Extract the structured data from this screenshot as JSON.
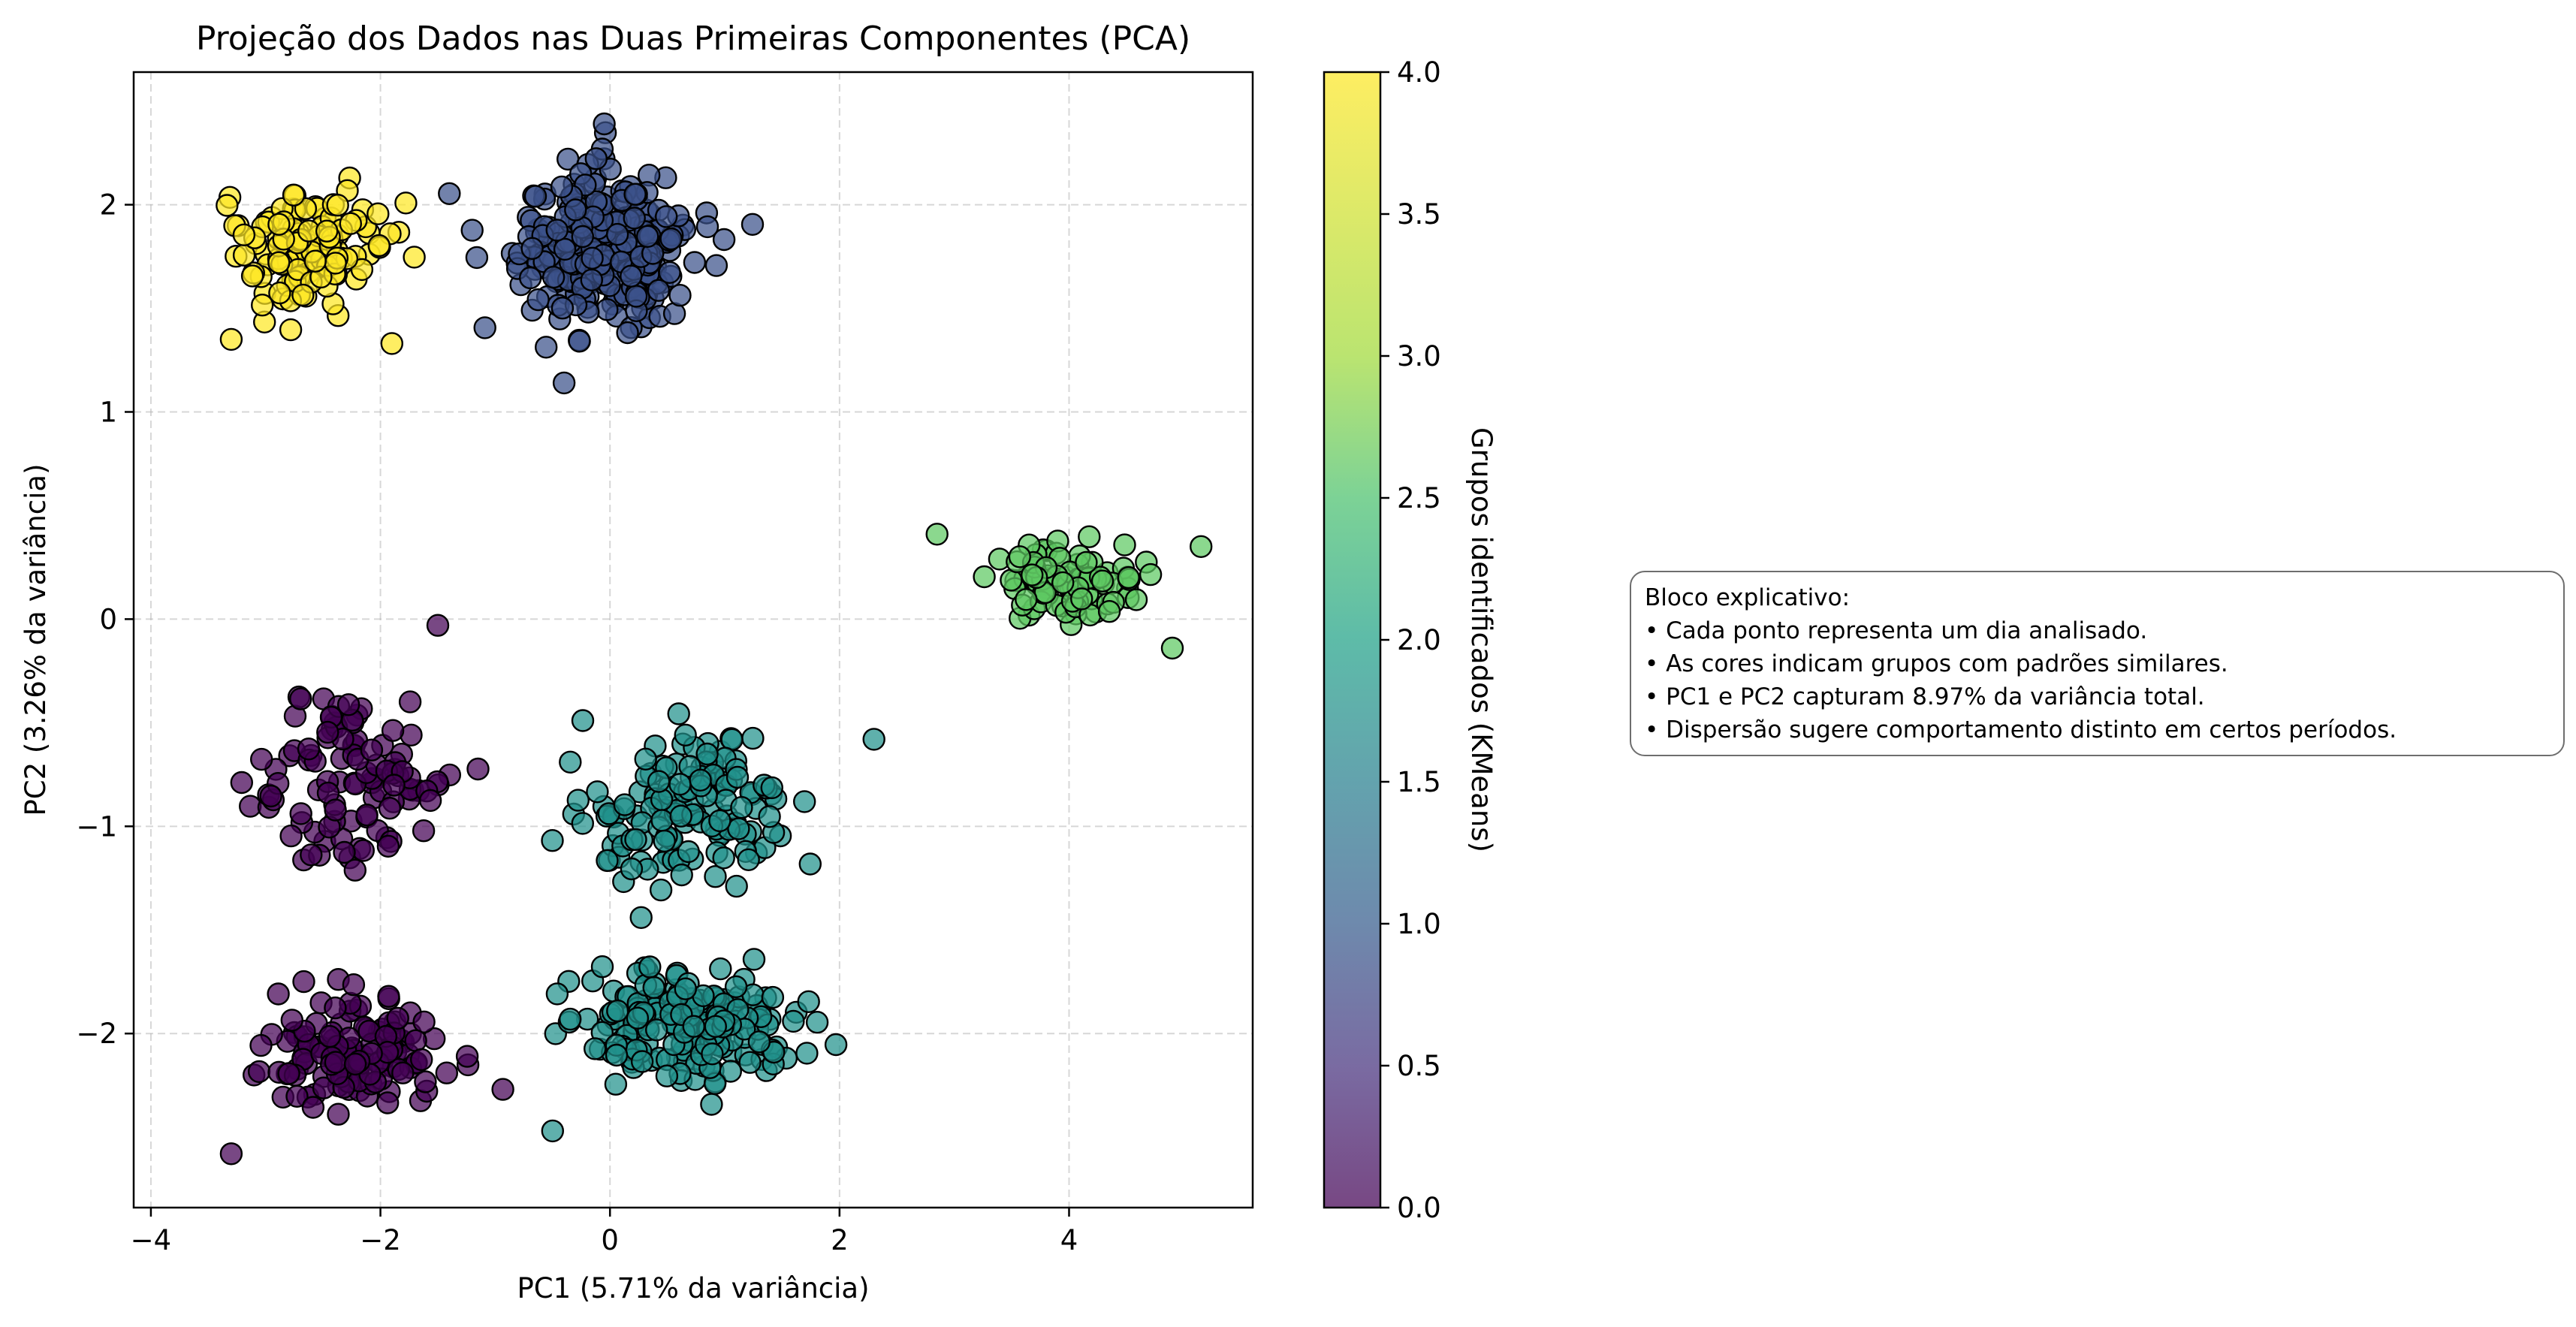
{
  "chart_data": {
    "type": "scatter",
    "title": "Projeção dos Dados nas Duas Primeiras Componentes (PCA)",
    "xlabel": "PC1 (5.71% da variância)",
    "ylabel": "PC2 (3.26% da variância)",
    "xlim": [
      -4.15,
      5.6
    ],
    "ylim": [
      -2.84,
      2.64
    ],
    "xticks": [
      -4,
      -2,
      0,
      2,
      4
    ],
    "yticks": [
      -2,
      -1,
      0,
      1,
      2
    ],
    "grid": true,
    "colorbar": {
      "label": "Grupos identificados (KMeans)",
      "range": [
        0.0,
        4.0
      ],
      "ticks": [
        "0.0",
        "0.5",
        "1.0",
        "1.5",
        "2.0",
        "2.5",
        "3.0",
        "3.5",
        "4.0"
      ],
      "colormap": "viridis"
    },
    "groups": [
      {
        "cluster": 0,
        "color": "#440154",
        "x_range": [
          -3.6,
          -0.8
        ],
        "y_ranges": [
          [
            -1.45,
            -0.05
          ],
          [
            -2.6,
            -1.6
          ]
        ],
        "approx_points": 230
      },
      {
        "cluster": 1,
        "color": "#3b528b",
        "x_range": [
          -1.4,
          1.3
        ],
        "y_range": [
          1.15,
          2.4
        ],
        "approx_points": 280
      },
      {
        "cluster": 2,
        "color": "#21918c",
        "x_range": [
          -0.9,
          2.3
        ],
        "y_ranges": [
          [
            -1.6,
            -0.25
          ],
          [
            -2.45,
            -1.5
          ]
        ],
        "approx_points": 330
      },
      {
        "cluster": 3,
        "color": "#5ec962",
        "x_range": [
          2.85,
          5.15
        ],
        "y_range": [
          -0.15,
          0.5
        ],
        "approx_points": 90
      },
      {
        "cluster": 4,
        "color": "#fde725",
        "x_range": [
          -3.7,
          -1.4
        ],
        "y_range": [
          1.33,
          2.25
        ],
        "approx_points": 120
      }
    ],
    "points_sample": [
      [
        -0.4,
        1.14,
        1
      ],
      [
        -1.5,
        -0.03,
        0
      ],
      [
        -3.3,
        1.35,
        4
      ],
      [
        -1.9,
        1.33,
        4
      ],
      [
        2.85,
        0.41,
        3
      ],
      [
        4.9,
        -0.14,
        3
      ],
      [
        -3.3,
        -2.58,
        0
      ],
      [
        1.3,
        -2.04,
        2
      ],
      [
        2.3,
        -0.58,
        2
      ],
      [
        -0.5,
        -2.47,
        2
      ],
      [
        -0.05,
        2.39,
        1
      ],
      [
        5.15,
        0.35,
        3
      ]
    ]
  },
  "infobox": {
    "lines": [
      "Bloco explicativo:",
      "• Cada ponto representa um dia analisado.",
      "• As cores indicam grupos com padrões similares.",
      "• PC1 e PC2 capturam 8.97% da variância total.",
      "• Dispersão sugere comportamento distinto em certos períodos."
    ]
  }
}
